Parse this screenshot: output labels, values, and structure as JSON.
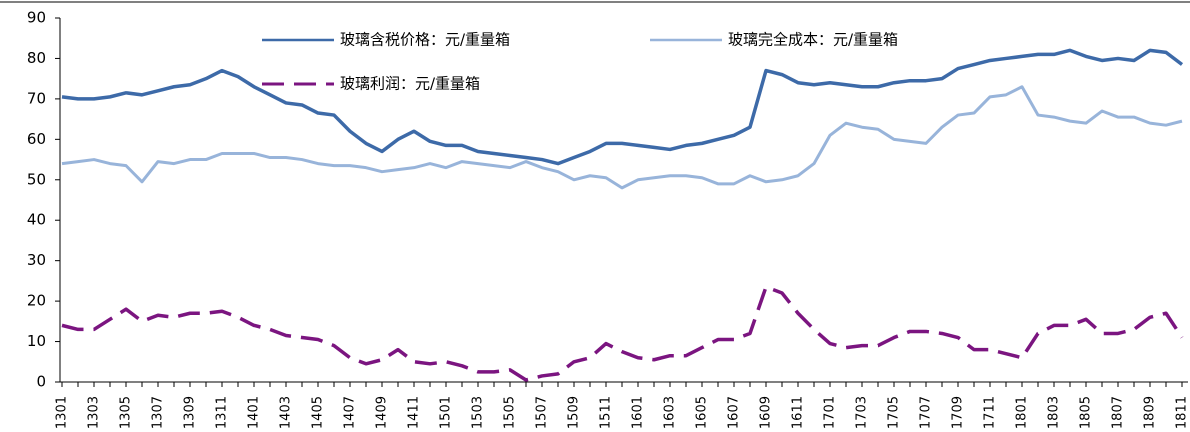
{
  "chart_data": {
    "type": "line",
    "categories": [
      "1301",
      null,
      "1303",
      null,
      "1305",
      null,
      "1307",
      null,
      "1309",
      null,
      "1311",
      null,
      "1401",
      null,
      "1403",
      null,
      "1405",
      null,
      "1407",
      null,
      "1409",
      null,
      "1411",
      null,
      "1501",
      null,
      "1503",
      null,
      "1505",
      null,
      "1507",
      null,
      "1509",
      null,
      "1511",
      null,
      "1601",
      null,
      "1603",
      null,
      "1605",
      null,
      "1607",
      null,
      "1609",
      null,
      "1611",
      null,
      "1701",
      null,
      "1703",
      null,
      "1705",
      null,
      "1707",
      null,
      "1709",
      null,
      "1711",
      null,
      "1801",
      null,
      "1803",
      null,
      "1805",
      null,
      "1807",
      null,
      "1809",
      null,
      "1811"
    ],
    "series": [
      {
        "name": "玻璃含税价格：元/重量箱",
        "color": "#3d6aa8",
        "width": 3.5,
        "dashed": false,
        "values": [
          70.5,
          70,
          70,
          70.5,
          71.5,
          71,
          72,
          73,
          73.5,
          75,
          77,
          75.5,
          73,
          71,
          69,
          68.5,
          66.5,
          66,
          62,
          59,
          57,
          60,
          62,
          59.5,
          58.5,
          58.5,
          57,
          56.5,
          56,
          55.5,
          55,
          54,
          55.5,
          57,
          59,
          59,
          58.5,
          58,
          57.5,
          58.5,
          59,
          60,
          61,
          63,
          77,
          76,
          74,
          73.5,
          74,
          73.5,
          73,
          73,
          74,
          74.5,
          74.5,
          75,
          77.5,
          78.5,
          79.5,
          80,
          80.5,
          81,
          81,
          82,
          80.5,
          79.5,
          80,
          79.5,
          82,
          81.5,
          78.5
        ]
      },
      {
        "name": "玻璃完全成本：元/重量箱",
        "color": "#98b4da",
        "width": 3,
        "dashed": false,
        "values": [
          54,
          54.5,
          55,
          54,
          53.5,
          49.5,
          54.5,
          54,
          55,
          55,
          56.5,
          56.5,
          56.5,
          55.5,
          55.5,
          55,
          54,
          53.5,
          53.5,
          53,
          52,
          52.5,
          53,
          54,
          53,
          54.5,
          54,
          53.5,
          53,
          54.5,
          53,
          52,
          50,
          51,
          50.5,
          48,
          50,
          50.5,
          51,
          51,
          50.5,
          49,
          49,
          51,
          49.5,
          50,
          51,
          54,
          61,
          64,
          63,
          62.5,
          60,
          59.5,
          59,
          63,
          66,
          66.5,
          70.5,
          71,
          73,
          66,
          65.5,
          64.5,
          64,
          67,
          65.5,
          65.5,
          64,
          63.5,
          64.5
        ]
      },
      {
        "name": "玻璃利润：元/重量箱",
        "color": "#7b1580",
        "width": 3.5,
        "dashed": true,
        "values": [
          14,
          13,
          13,
          15.5,
          18,
          15,
          16.5,
          16,
          17,
          17,
          17.5,
          16,
          14,
          13,
          11.5,
          11,
          10.5,
          9,
          6,
          4.5,
          5.5,
          8,
          5,
          4.5,
          5,
          4,
          2.5,
          2.5,
          3,
          0.5,
          1.5,
          2,
          5,
          6,
          9.5,
          7.5,
          6,
          5.5,
          6.5,
          6.5,
          8.5,
          10.5,
          10.5,
          12,
          23.5,
          22,
          17,
          13,
          9.5,
          8.5,
          9,
          9,
          11,
          12.5,
          12.5,
          12,
          11,
          8,
          8,
          7,
          6,
          12,
          14,
          14,
          15.5,
          12,
          12,
          13,
          16,
          17,
          11
        ]
      }
    ],
    "ylim": [
      0,
      90
    ],
    "yticks": [
      0,
      10,
      20,
      30,
      40,
      50,
      60,
      70,
      80,
      90
    ],
    "grid": false
  }
}
